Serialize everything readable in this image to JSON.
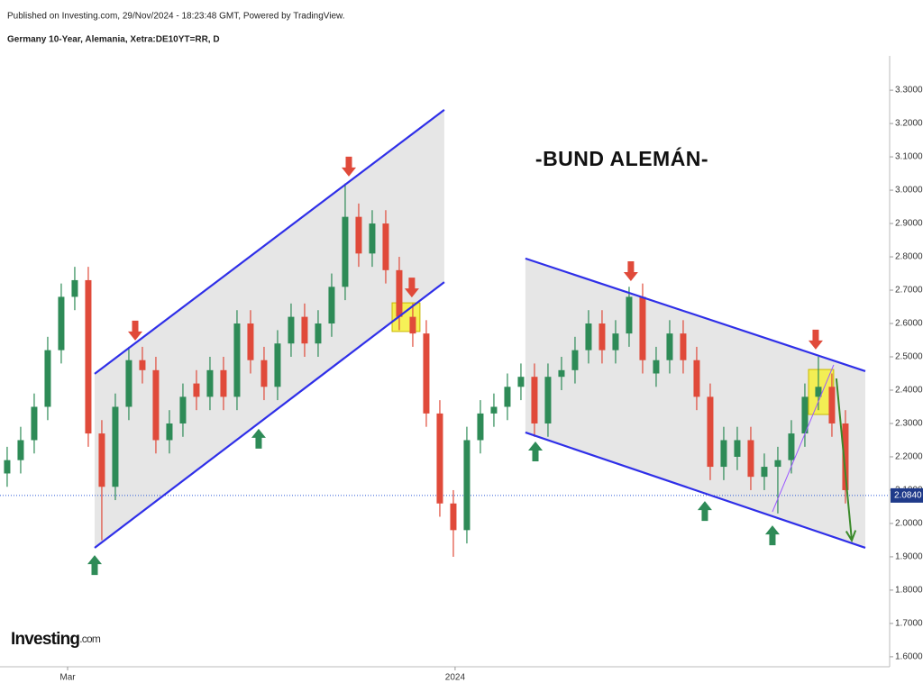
{
  "chart_data": {
    "type": "candlestick",
    "source": "Published on Investing.com, 29/Nov/2024 - 18:23:48 GMT, Powered by TradingView.",
    "title": "Germany 10-Year, Alemania, Xetra:DE10YT=RR, D",
    "annotation_title": "-BUND ALEMÁN-",
    "logo": "Investing",
    "logo_suffix": ".com",
    "up_color": "#2e8b57",
    "down_color": "#e04a3a",
    "open": [
      2.15,
      2.19,
      2.25,
      2.35,
      2.52,
      2.68,
      2.73,
      2.27,
      2.11,
      2.35,
      2.49,
      2.46,
      2.25,
      2.3,
      2.42,
      2.38,
      2.46,
      2.38,
      2.6,
      2.49,
      2.41,
      2.54,
      2.62,
      2.54,
      2.6,
      2.71,
      2.92,
      2.81,
      2.9,
      2.76,
      2.62,
      2.57,
      2.33,
      2.06,
      1.98,
      2.25,
      2.33,
      2.35,
      2.41,
      2.44,
      2.3,
      2.44,
      2.46,
      2.52,
      2.6,
      2.52,
      2.57,
      2.68,
      2.45,
      2.49,
      2.57,
      2.49,
      2.38,
      2.17,
      2.2,
      2.25,
      2.14,
      2.17,
      2.19,
      2.27,
      2.38,
      2.41,
      2.3
    ],
    "high": [
      2.23,
      2.29,
      2.39,
      2.56,
      2.72,
      2.77,
      2.77,
      2.31,
      2.39,
      2.53,
      2.53,
      2.5,
      2.34,
      2.42,
      2.46,
      2.5,
      2.5,
      2.64,
      2.64,
      2.53,
      2.58,
      2.66,
      2.66,
      2.64,
      2.75,
      3.02,
      2.96,
      2.94,
      2.94,
      2.8,
      2.66,
      2.61,
      2.37,
      2.1,
      2.29,
      2.37,
      2.39,
      2.45,
      2.48,
      2.48,
      2.48,
      2.5,
      2.56,
      2.64,
      2.64,
      2.61,
      2.71,
      2.72,
      2.53,
      2.61,
      2.61,
      2.53,
      2.42,
      2.29,
      2.29,
      2.29,
      2.21,
      2.23,
      2.31,
      2.42,
      2.5,
      2.45,
      2.34
    ],
    "low": [
      2.11,
      2.15,
      2.21,
      2.31,
      2.48,
      2.64,
      2.23,
      1.95,
      2.07,
      2.31,
      2.42,
      2.21,
      2.21,
      2.26,
      2.34,
      2.34,
      2.34,
      2.34,
      2.45,
      2.37,
      2.37,
      2.5,
      2.5,
      2.5,
      2.56,
      2.67,
      2.77,
      2.77,
      2.72,
      2.58,
      2.53,
      2.29,
      2.02,
      1.9,
      1.94,
      2.21,
      2.29,
      2.31,
      2.37,
      2.26,
      2.26,
      2.4,
      2.42,
      2.48,
      2.48,
      2.48,
      2.53,
      2.45,
      2.41,
      2.45,
      2.45,
      2.34,
      2.13,
      2.13,
      2.16,
      2.1,
      2.1,
      2.03,
      2.15,
      2.23,
      2.34,
      2.26,
      2.06
    ],
    "close": [
      2.19,
      2.25,
      2.35,
      2.52,
      2.68,
      2.73,
      2.27,
      2.11,
      2.35,
      2.49,
      2.46,
      2.25,
      2.3,
      2.38,
      2.38,
      2.46,
      2.38,
      2.6,
      2.49,
      2.41,
      2.54,
      2.62,
      2.54,
      2.6,
      2.71,
      2.92,
      2.81,
      2.9,
      2.76,
      2.62,
      2.57,
      2.33,
      2.06,
      1.98,
      2.25,
      2.33,
      2.35,
      2.41,
      2.44,
      2.3,
      2.44,
      2.46,
      2.52,
      2.6,
      2.52,
      2.57,
      2.68,
      2.49,
      2.49,
      2.57,
      2.49,
      2.38,
      2.17,
      2.25,
      2.25,
      2.14,
      2.17,
      2.19,
      2.27,
      2.38,
      2.41,
      2.3,
      2.1
    ],
    "xlim": [
      -0.53,
      65.27
    ],
    "xticks": [
      {
        "value": 4.47,
        "label": "Mar"
      },
      {
        "value": 33.13,
        "label": "2024"
      }
    ],
    "ylim": [
      1.57,
      3.403
    ],
    "yticks": [
      {
        "value": 1.6,
        "label": "1.6000"
      },
      {
        "value": 1.7,
        "label": "1.7000"
      },
      {
        "value": 1.8,
        "label": "1.8000"
      },
      {
        "value": 1.9,
        "label": "1.9000"
      },
      {
        "value": 2.0,
        "label": "2.0000"
      },
      {
        "value": 2.1,
        "label": "2.1000"
      },
      {
        "value": 2.2,
        "label": "2.2000"
      },
      {
        "value": 2.3,
        "label": "2.3000"
      },
      {
        "value": 2.4,
        "label": "2.4000"
      },
      {
        "value": 2.5,
        "label": "2.5000"
      },
      {
        "value": 2.6,
        "label": "2.6000"
      },
      {
        "value": 2.7,
        "label": "2.7000"
      },
      {
        "value": 2.8,
        "label": "2.8000"
      },
      {
        "value": 2.9,
        "label": "2.9000"
      },
      {
        "value": 3.0,
        "label": "3.0000"
      },
      {
        "value": 3.1,
        "label": "3.1000"
      },
      {
        "value": 3.2,
        "label": "3.2000"
      },
      {
        "value": 3.3,
        "label": "3.3000"
      }
    ],
    "last_price": {
      "value": 2.084,
      "label": "2.0840"
    },
    "channel_color": "#2f2fe8",
    "channel_fill": "#e6e6e6",
    "channels": [
      {
        "upper": {
          "x": [
            6.47,
            32.33
          ],
          "y": [
            2.449,
            3.241
          ]
        },
        "lower": {
          "x": [
            6.47,
            32.33
          ],
          "y": [
            1.927,
            2.724
          ]
        }
      },
      {
        "upper": {
          "x": [
            38.33,
            63.47
          ],
          "y": [
            2.795,
            2.457
          ]
        },
        "lower": {
          "x": [
            38.33,
            63.47
          ],
          "y": [
            2.273,
            1.927
          ]
        }
      }
    ],
    "down_arrow_color": "#e04a3a",
    "up_arrow_color": "#2e8b57",
    "arrows": [
      {
        "direction": "down",
        "x": 9.47,
        "y": 2.549
      },
      {
        "direction": "down",
        "x": 25.27,
        "y": 3.041
      },
      {
        "direction": "down",
        "x": 29.93,
        "y": 2.678
      },
      {
        "direction": "down",
        "x": 46.13,
        "y": 2.727
      },
      {
        "direction": "down",
        "x": 59.8,
        "y": 2.522
      },
      {
        "direction": "up",
        "x": 6.47,
        "y": 1.905
      },
      {
        "direction": "up",
        "x": 18.6,
        "y": 2.284
      },
      {
        "direction": "up",
        "x": 39.07,
        "y": 2.246
      },
      {
        "direction": "up",
        "x": 51.6,
        "y": 2.067
      },
      {
        "direction": "up",
        "x": 56.6,
        "y": 1.994
      }
    ],
    "highlight_color": "#f5ee3a",
    "highlight_boxes": [
      {
        "x": [
          28.47,
          30.53
        ],
        "y": [
          2.576,
          2.662
        ]
      },
      {
        "x": [
          59.27,
          61.13
        ],
        "y": [
          2.327,
          2.462
        ]
      }
    ],
    "trend_lines": [
      {
        "color": "#9b59ff",
        "x": [
          56.6,
          61.13
        ],
        "y": [
          2.035,
          2.476
        ]
      },
      {
        "color": "#3a8a2a",
        "x": [
          61.33,
          62.47
        ],
        "y": [
          2.435,
          1.949
        ]
      }
    ]
  }
}
